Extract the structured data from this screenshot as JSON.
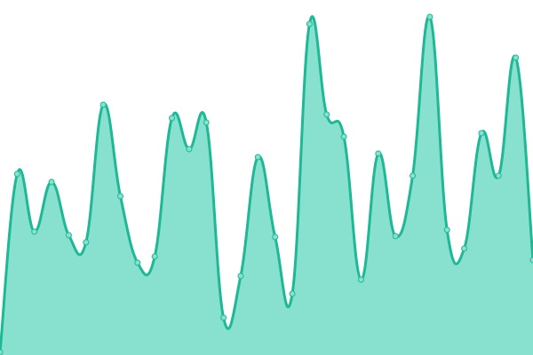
{
  "chart_data": {
    "type": "area",
    "categories": [
      null,
      null,
      null,
      null,
      null,
      null,
      null,
      null,
      null,
      null,
      null,
      null,
      null,
      null,
      null,
      null,
      null,
      null,
      null,
      null,
      null,
      null,
      null,
      null,
      null,
      null,
      null,
      null,
      null,
      null,
      null,
      null
    ],
    "values": [
      3,
      204,
      139,
      195,
      135,
      127,
      282,
      179,
      104,
      111,
      267,
      232,
      262,
      42,
      89,
      223,
      133,
      69,
      373,
      271,
      246,
      85,
      227,
      134,
      202,
      381,
      141,
      120,
      250,
      202,
      335,
      107
    ],
    "ylim": [
      0,
      400
    ],
    "color": "#1fb896",
    "area_color": "#88e1cf",
    "smooth": true,
    "markers": true
  }
}
